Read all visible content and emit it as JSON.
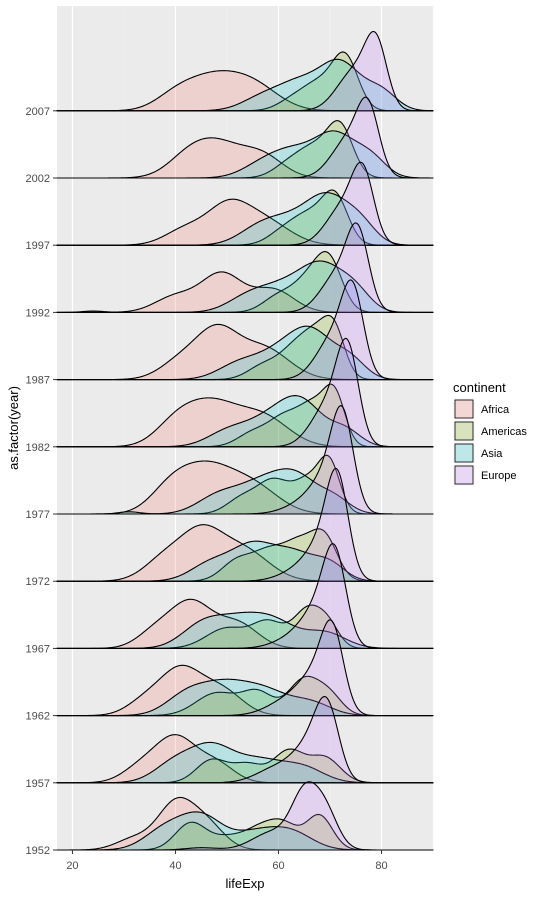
{
  "chart_data": {
    "type": "ridgeline-density",
    "xlabel": "lifeExp",
    "ylabel": "as.factor(year)",
    "xlim": [
      17,
      90
    ],
    "x_ticks": [
      20,
      40,
      60,
      80
    ],
    "grid": true,
    "legend": {
      "title": "continent",
      "placement": "right"
    },
    "categories": [
      "1952",
      "1957",
      "1962",
      "1967",
      "1972",
      "1977",
      "1982",
      "1987",
      "1992",
      "1997",
      "2002",
      "2007"
    ],
    "series": [
      {
        "name": "Africa",
        "color": "#F8766D"
      },
      {
        "name": "Americas",
        "color": "#7CAE00"
      },
      {
        "name": "Asia",
        "color": "#00BFC4"
      },
      {
        "name": "Europe",
        "color": "#C77CFF"
      }
    ],
    "density_components": {
      "Africa": {
        "1952": [
          [
            32,
            3.5,
            0.25
          ],
          [
            40,
            3.5,
            1.0
          ],
          [
            46,
            3.5,
            0.55
          ]
        ],
        "1957": [
          [
            33,
            3.5,
            0.3
          ],
          [
            40,
            4,
            1.0
          ],
          [
            48,
            3.5,
            0.4
          ]
        ],
        "1962": [
          [
            34,
            3.5,
            0.3
          ],
          [
            41,
            4,
            1.0
          ],
          [
            49,
            4,
            0.55
          ]
        ],
        "1967": [
          [
            36,
            3.5,
            0.35
          ],
          [
            43,
            4,
            1.0
          ],
          [
            52,
            4,
            0.55
          ]
        ],
        "1972": [
          [
            38,
            4,
            0.5
          ],
          [
            45,
            4,
            0.95
          ],
          [
            53,
            5,
            0.7
          ]
        ],
        "1977": [
          [
            39,
            4,
            0.5
          ],
          [
            46,
            5,
            0.95
          ],
          [
            55,
            5,
            0.6
          ]
        ],
        "1982": [
          [
            40,
            4,
            0.45
          ],
          [
            47,
            5,
            0.9
          ],
          [
            57,
            5,
            0.65
          ]
        ],
        "1987": [
          [
            41,
            4,
            0.4
          ],
          [
            48,
            4,
            1.0
          ],
          [
            57,
            5,
            0.7
          ]
        ],
        "1992": [
          [
            24,
            2,
            0.03
          ],
          [
            40,
            4,
            0.35
          ],
          [
            49,
            4,
            0.85
          ],
          [
            59,
            4,
            0.5
          ]
        ],
        "1997": [
          [
            42,
            4,
            0.35
          ],
          [
            50,
            4,
            0.75
          ],
          [
            57,
            5,
            0.55
          ]
        ],
        "2002": [
          [
            42,
            4,
            0.3
          ],
          [
            48,
            5,
            0.75
          ],
          [
            57,
            4,
            0.45
          ]
        ],
        "2007": [
          [
            40,
            4,
            0.3
          ],
          [
            47,
            5,
            0.65
          ],
          [
            55,
            5,
            0.55
          ]
        ]
      },
      "Americas": {
        "1952": [
          [
            43,
            3,
            0.6
          ],
          [
            50,
            3,
            0.25
          ],
          [
            56,
            3,
            0.4
          ],
          [
            61,
            3,
            0.55
          ],
          [
            68,
            2.5,
            0.75
          ]
        ],
        "1957": [
          [
            47,
            3,
            0.5
          ],
          [
            54,
            3,
            0.4
          ],
          [
            62,
            3,
            0.7
          ],
          [
            69,
            3,
            0.55
          ]
        ],
        "1962": [
          [
            48,
            4,
            0.5
          ],
          [
            56,
            3,
            0.5
          ],
          [
            65,
            3,
            0.8
          ],
          [
            70,
            2.5,
            0.4
          ]
        ],
        "1967": [
          [
            50,
            4,
            0.45
          ],
          [
            58,
            3,
            0.55
          ],
          [
            66,
            3,
            0.9
          ],
          [
            70,
            2,
            0.3
          ]
        ],
        "1972": [
          [
            52,
            3,
            0.45
          ],
          [
            58,
            3,
            0.6
          ],
          [
            64,
            3,
            0.8
          ],
          [
            69,
            2.5,
            0.9
          ]
        ],
        "1977": [
          [
            53,
            3,
            0.35
          ],
          [
            59,
            3,
            0.7
          ],
          [
            66,
            3,
            0.75
          ],
          [
            70,
            2,
            0.95
          ]
        ],
        "1982": [
          [
            55,
            3,
            0.3
          ],
          [
            61,
            3,
            0.6
          ],
          [
            67,
            3,
            0.9
          ],
          [
            71,
            2,
            0.95
          ]
        ],
        "1987": [
          [
            57,
            3,
            0.3
          ],
          [
            63,
            3,
            0.6
          ],
          [
            68,
            3,
            0.95
          ],
          [
            71,
            2,
            0.7
          ]
        ],
        "1992": [
          [
            60,
            3,
            0.35
          ],
          [
            66,
            3,
            0.7
          ],
          [
            70,
            2.5,
            1.0
          ]
        ],
        "1997": [
          [
            61,
            3,
            0.3
          ],
          [
            66,
            3,
            0.6
          ],
          [
            71,
            2.5,
            1.05
          ]
        ],
        "2002": [
          [
            62,
            3,
            0.3
          ],
          [
            67,
            3,
            0.6
          ],
          [
            72,
            2.5,
            1.1
          ]
        ],
        "2007": [
          [
            63,
            3,
            0.25
          ],
          [
            68,
            3,
            0.55
          ],
          [
            73,
            2.5,
            1.15
          ]
        ]
      },
      "Asia": {
        "1952": [
          [
            38,
            4,
            0.45
          ],
          [
            45,
            4,
            0.7
          ],
          [
            56,
            5,
            0.4
          ],
          [
            63,
            4,
            0.3
          ]
        ],
        "1957": [
          [
            40,
            4,
            0.45
          ],
          [
            47,
            4,
            0.7
          ],
          [
            56,
            5,
            0.5
          ],
          [
            65,
            4,
            0.3
          ]
        ],
        "1962": [
          [
            42,
            4,
            0.4
          ],
          [
            50,
            5,
            0.7
          ],
          [
            58,
            4,
            0.4
          ],
          [
            66,
            4,
            0.3
          ]
        ],
        "1967": [
          [
            45,
            4,
            0.45
          ],
          [
            53,
            5,
            0.65
          ],
          [
            60,
            4,
            0.4
          ],
          [
            69,
            4,
            0.35
          ]
        ],
        "1972": [
          [
            47,
            4,
            0.4
          ],
          [
            55,
            4,
            0.75
          ],
          [
            63,
            4,
            0.6
          ],
          [
            70,
            3,
            0.35
          ]
        ],
        "1977": [
          [
            31,
            2,
            0.05
          ],
          [
            48,
            4,
            0.35
          ],
          [
            57,
            5,
            0.7
          ],
          [
            64,
            4,
            0.65
          ],
          [
            71,
            3,
            0.3
          ]
        ],
        "1982": [
          [
            50,
            4,
            0.3
          ],
          [
            59,
            5,
            0.65
          ],
          [
            65,
            4,
            0.75
          ],
          [
            73,
            3,
            0.35
          ]
        ],
        "1987": [
          [
            52,
            4,
            0.3
          ],
          [
            61,
            5,
            0.65
          ],
          [
            67,
            4,
            0.8
          ],
          [
            74,
            3,
            0.4
          ]
        ],
        "1992": [
          [
            54,
            4,
            0.3
          ],
          [
            62,
            5,
            0.6
          ],
          [
            69,
            4,
            0.85
          ],
          [
            75,
            3,
            0.4
          ]
        ],
        "1997": [
          [
            56,
            4,
            0.3
          ],
          [
            63,
            5,
            0.55
          ],
          [
            70,
            4,
            0.9
          ],
          [
            76,
            3,
            0.4
          ]
        ],
        "2002": [
          [
            57,
            4,
            0.3
          ],
          [
            63,
            4,
            0.5
          ],
          [
            71,
            4,
            0.95
          ],
          [
            78,
            3,
            0.4
          ]
        ],
        "2007": [
          [
            57,
            4,
            0.3
          ],
          [
            64,
            4,
            0.55
          ],
          [
            72,
            4,
            1.05
          ],
          [
            80,
            3,
            0.4
          ]
        ]
      },
      "Europe": {
        "1952": [
          [
            45,
            3,
            0.05
          ],
          [
            59,
            4,
            0.4
          ],
          [
            65,
            2.5,
            1.1
          ],
          [
            69,
            2.5,
            0.85
          ]
        ],
        "1957": [
          [
            60,
            4,
            0.35
          ],
          [
            66,
            3,
            0.7
          ],
          [
            69.5,
            2.3,
            1.5
          ]
        ],
        "1962": [
          [
            62,
            4,
            0.35
          ],
          [
            67,
            3,
            0.7
          ],
          [
            70.5,
            2.2,
            1.7
          ]
        ],
        "1967": [
          [
            64,
            4,
            0.3
          ],
          [
            68,
            3,
            0.7
          ],
          [
            71,
            2.2,
            1.8
          ]
        ],
        "1972": [
          [
            65,
            4,
            0.3
          ],
          [
            69,
            3,
            0.7
          ],
          [
            71.5,
            2.1,
            1.9
          ]
        ],
        "1977": [
          [
            66,
            4,
            0.3
          ],
          [
            70,
            3,
            0.7
          ],
          [
            72.5,
            2.1,
            1.8
          ]
        ],
        "1982": [
          [
            68,
            3,
            0.4
          ],
          [
            71,
            3,
            0.7
          ],
          [
            73.5,
            2.1,
            1.8
          ]
        ],
        "1987": [
          [
            69,
            3,
            0.4
          ],
          [
            72,
            3,
            0.7
          ],
          [
            74.5,
            2.1,
            1.6
          ]
        ],
        "1992": [
          [
            70,
            3,
            0.4
          ],
          [
            73,
            3,
            0.6
          ],
          [
            75.5,
            2.1,
            1.45
          ]
        ],
        "1997": [
          [
            71,
            3,
            0.4
          ],
          [
            74,
            3,
            0.6
          ],
          [
            76.5,
            2.1,
            1.3
          ]
        ],
        "2002": [
          [
            72,
            3,
            0.4
          ],
          [
            75,
            3,
            0.6
          ],
          [
            77.5,
            2.1,
            1.25
          ]
        ],
        "2007": [
          [
            73,
            3,
            0.4
          ],
          [
            76,
            3,
            0.6
          ],
          [
            79,
            2.1,
            1.3
          ]
        ]
      }
    }
  }
}
